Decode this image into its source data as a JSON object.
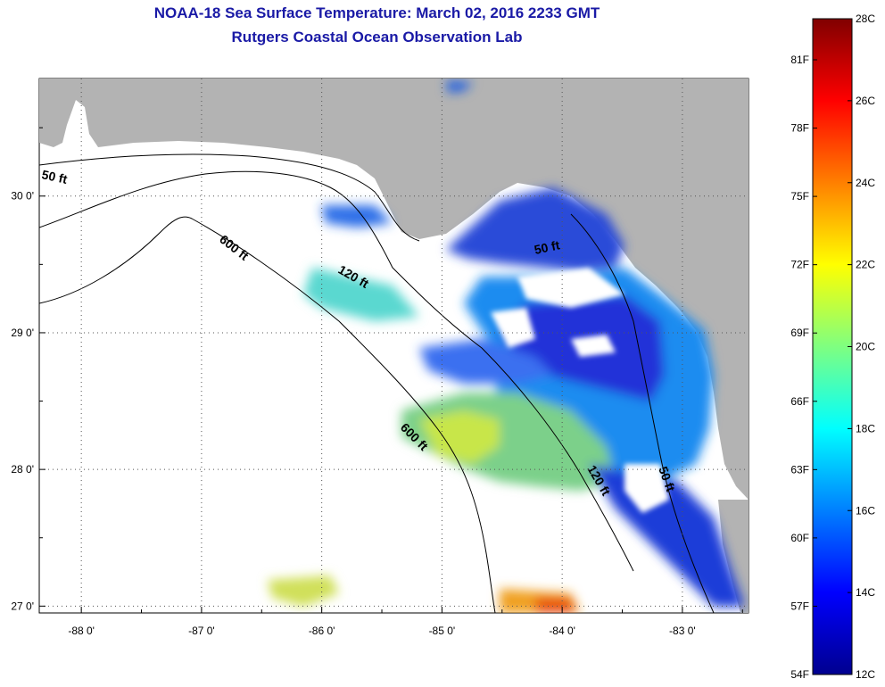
{
  "title": {
    "line1": "NOAA-18 Sea Surface Temperature:  March 02, 2016 2233 GMT",
    "line2": "Rutgers Coastal Ocean Observation Lab"
  },
  "map": {
    "lon_range": [
      -88.35,
      -82.45
    ],
    "lat_range": [
      26.95,
      30.86
    ],
    "lon_ticks": [
      {
        "value": -88,
        "label": "-88 0'"
      },
      {
        "value": -87,
        "label": "-87 0'"
      },
      {
        "value": -86,
        "label": "-86 0'"
      },
      {
        "value": -85,
        "label": "-85 0'"
      },
      {
        "value": -84,
        "label": "-84 0'"
      },
      {
        "value": -83,
        "label": "-83 0'"
      }
    ],
    "lat_ticks": [
      {
        "value": 30,
        "label": "30 0'"
      },
      {
        "value": 29,
        "label": "29 0'"
      },
      {
        "value": 28,
        "label": "28 0'"
      },
      {
        "value": 27,
        "label": "27 0'"
      }
    ],
    "contour_labels": [
      {
        "label": "50 ft"
      },
      {
        "label": "600 ft"
      },
      {
        "label": "120 ft"
      },
      {
        "label": "50 ft"
      },
      {
        "label": "600 ft"
      },
      {
        "label": "120 ft"
      },
      {
        "label": "50 ft"
      }
    ],
    "colors": {
      "land": "#b3b3b3",
      "water_no_data": "#ffffff"
    }
  },
  "colorbar": {
    "celsius_labels": [
      "28C",
      "26C",
      "24C",
      "22C",
      "20C",
      "18C",
      "16C",
      "14C",
      "12C"
    ],
    "fahrenheit_labels": [
      "81F",
      "78F",
      "75F",
      "72F",
      "69F",
      "66F",
      "63F",
      "60F",
      "57F",
      "54F"
    ],
    "range_c": [
      12,
      28
    ],
    "colormap": "jet"
  }
}
